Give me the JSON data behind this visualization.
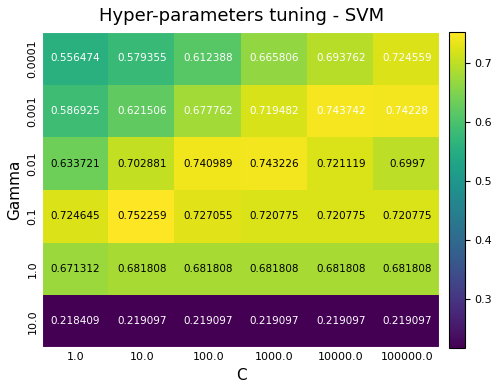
{
  "title": "Hyper-parameters tuning - SVM",
  "xlabel": "C",
  "ylabel": "Gamma",
  "gamma_labels": [
    "0.0001",
    "0.001",
    "0.01",
    "0.1",
    "1.0",
    "10.0"
  ],
  "c_labels": [
    "1.0",
    "10.0",
    "100.0",
    "1000.0",
    "10000.0",
    "100000.0"
  ],
  "values": [
    [
      0.556474,
      0.579355,
      0.612388,
      0.665806,
      0.693762,
      0.724559
    ],
    [
      0.586925,
      0.621506,
      0.677762,
      0.719482,
      0.743742,
      0.74228
    ],
    [
      0.633721,
      0.702881,
      0.740989,
      0.743226,
      0.721119,
      0.6997
    ],
    [
      0.724645,
      0.752259,
      0.727055,
      0.720775,
      0.720775,
      0.720775
    ],
    [
      0.671312,
      0.681808,
      0.681808,
      0.681808,
      0.681808,
      0.681808
    ],
    [
      0.218409,
      0.219097,
      0.219097,
      0.219097,
      0.219097,
      0.219097
    ]
  ],
  "cmap": "viridis",
  "vmin": 0.218,
  "vmax": 0.752,
  "colorbar_ticks": [
    0.3,
    0.4,
    0.5,
    0.6,
    0.7
  ],
  "text_color_threshold": 0.58,
  "white_text_rows": [
    0,
    1,
    5
  ],
  "figsize": [
    5.0,
    3.9
  ],
  "dpi": 100,
  "title_fontsize": 13,
  "label_fontsize": 11,
  "tick_fontsize": 8,
  "annot_fontsize": 7.5,
  "background_color": "#ffffff"
}
